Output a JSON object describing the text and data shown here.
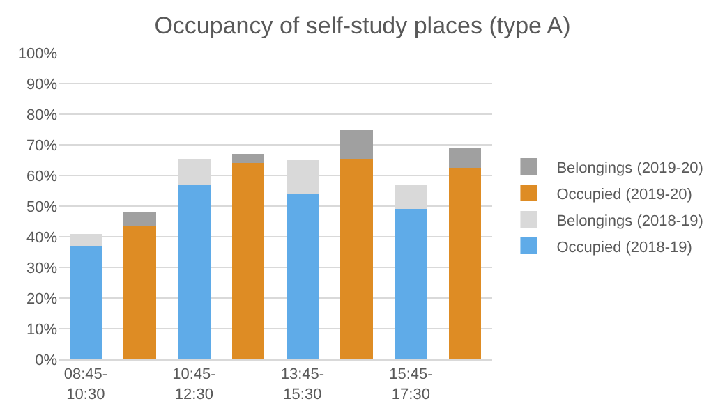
{
  "chart_data": {
    "type": "bar",
    "title": "Occupancy of self-study places (type A)",
    "stacked": true,
    "categories": [
      "08:45-10:30",
      null,
      "10:45-12:30",
      null,
      "13:45-15:30",
      null,
      "15:45-17:30",
      null
    ],
    "series": [
      {
        "name": "Occupied (2018-19)",
        "color": "#5fabe8",
        "values": [
          37,
          null,
          57,
          null,
          54,
          null,
          49,
          null
        ]
      },
      {
        "name": "Belongings (2018-19)",
        "color": "#d9d9d9",
        "values": [
          4,
          null,
          8.5,
          null,
          11,
          null,
          8,
          null
        ]
      },
      {
        "name": "Occupied (2019-20)",
        "color": "#de8c24",
        "values": [
          null,
          43.5,
          null,
          64,
          null,
          65.5,
          null,
          62.5
        ]
      },
      {
        "name": "Belongings (2019-20)",
        "color": "#a0a0a0",
        "values": [
          null,
          4.5,
          null,
          3,
          null,
          9.5,
          null,
          6.5
        ]
      }
    ],
    "ylim": [
      0,
      100
    ],
    "yticks": [
      {
        "value": 0,
        "label": "0%"
      },
      {
        "value": 10,
        "label": "10%"
      },
      {
        "value": 20,
        "label": "20%"
      },
      {
        "value": 30,
        "label": "30%"
      },
      {
        "value": 40,
        "label": "40%"
      },
      {
        "value": 50,
        "label": "50%"
      },
      {
        "value": 60,
        "label": "60%"
      },
      {
        "value": 70,
        "label": "70%"
      },
      {
        "value": 80,
        "label": "80%"
      },
      {
        "value": 90,
        "label": "90%"
      },
      {
        "value": 100,
        "label": "100%"
      }
    ],
    "grid": "y",
    "legend": "right"
  }
}
